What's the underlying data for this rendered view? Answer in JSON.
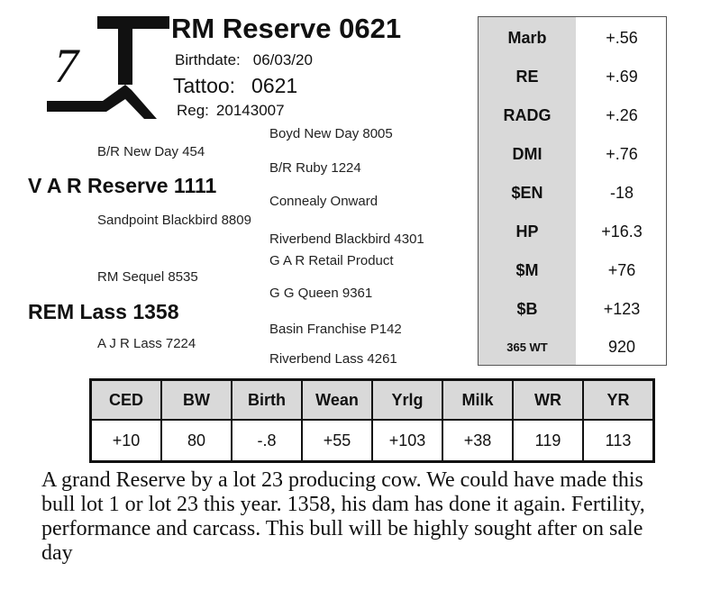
{
  "lot_number": "7",
  "header": {
    "bull_name": "RM Reserve 0621",
    "birthdate_label": "Birthdate:",
    "birthdate": "06/03/20",
    "tattoo_label": "Tattoo:",
    "tattoo": "0621",
    "reg_label": "Reg:",
    "reg": "20143007"
  },
  "pedigree": {
    "sire": "V A R Reserve 1111",
    "sire_sire": "B/R New Day 454",
    "sire_sire_sire": "Boyd New Day 8005",
    "sire_sire_dam": "B/R Ruby 1224",
    "sire_dam": "Sandpoint Blackbird 8809",
    "sire_dam_sire": "Connealy Onward",
    "sire_dam_dam": "Riverbend Blackbird 4301",
    "dam": "REM Lass 1358",
    "dam_sire": "RM Sequel 8535",
    "dam_sire_sire": "G A R Retail Product",
    "dam_sire_dam": "G G Queen 9361",
    "dam_dam": "A J R Lass 7224",
    "dam_dam_sire": "Basin Franchise P142",
    "dam_dam_dam": "Riverbend Lass 4261"
  },
  "side_epds": [
    {
      "label": "Marb",
      "value": "+.56"
    },
    {
      "label": "RE",
      "value": "+.69"
    },
    {
      "label": "RADG",
      "value": "+.26"
    },
    {
      "label": "DMI",
      "value": "+.76"
    },
    {
      "label": "$EN",
      "value": "-18"
    },
    {
      "label": "HP",
      "value": "+16.3"
    },
    {
      "label": "$M",
      "value": "+76"
    },
    {
      "label": "$B",
      "value": "+123"
    },
    {
      "label": "365 WT",
      "value": "920"
    }
  ],
  "epd_table": {
    "headers": [
      "CED",
      "BW",
      "Birth",
      "Wean",
      "Yrlg",
      "Milk",
      "WR",
      "YR"
    ],
    "values": [
      "+10",
      "80",
      "-.8",
      "+55",
      "+103",
      "+38",
      "119",
      "113"
    ]
  },
  "description": "A grand Reserve by a lot 23 producing cow. We could have made this bull lot 1 or lot 23 this year. 1358, his dam has done it again.  Fertility, performance and carcass.  This bull will be highly sought after on sale day"
}
